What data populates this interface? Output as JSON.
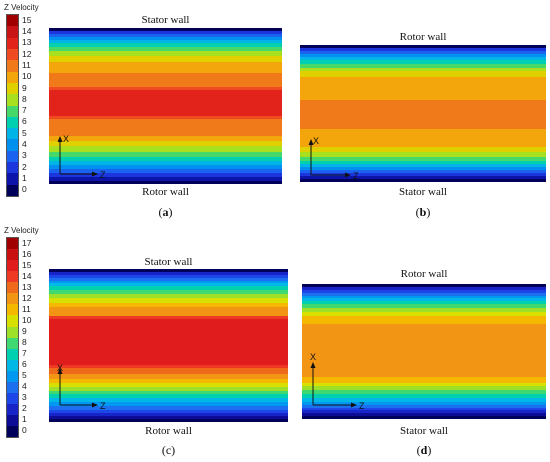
{
  "legends": [
    {
      "title": "Z Velocity",
      "ticks": [
        "15",
        "14",
        "13",
        "12",
        "11",
        "10",
        "9",
        "8",
        "7",
        "6",
        "5",
        "4",
        "3",
        "2",
        "1",
        "0"
      ]
    },
    {
      "title": "Z Velocity",
      "ticks": [
        "17",
        "16",
        "15",
        "14",
        "13",
        "12",
        "11",
        "10",
        "9",
        "8",
        "7",
        "6",
        "5",
        "4",
        "3",
        "2",
        "1",
        "0"
      ]
    }
  ],
  "panels": [
    {
      "id": "a",
      "top_wall": "Stator wall",
      "bottom_wall": "Rotor wall",
      "caption_open": "(",
      "caption_letter": "a",
      "caption_close": ")",
      "letter_bold": true,
      "axis_vertical": "X",
      "axis_horizontal": "Z"
    },
    {
      "id": "b",
      "top_wall": "Rotor wall",
      "bottom_wall": "Stator wall",
      "caption_open": "(",
      "caption_letter": "b",
      "caption_close": ")",
      "letter_bold": true,
      "axis_vertical": "X",
      "axis_horizontal": "Z"
    },
    {
      "id": "c",
      "top_wall": "Stator wall",
      "bottom_wall": "Rotor  wall",
      "caption_open": "(",
      "caption_letter": "c",
      "caption_close": ")",
      "letter_bold": false,
      "axis_vertical": "X",
      "axis_horizontal": "Z"
    },
    {
      "id": "d",
      "top_wall": "Rotor wall",
      "bottom_wall": "Stator wall",
      "caption_open": "(",
      "caption_letter": "d",
      "caption_close": ")",
      "letter_bold": true,
      "axis_vertical": "X",
      "axis_horizontal": "Z"
    }
  ],
  "colors": {
    "scale_17": [
      "#a00000",
      "#c81010",
      "#e01c1c",
      "#ee3a22",
      "#f06a1c",
      "#f29414",
      "#f5b800",
      "#d8e000",
      "#9ee028",
      "#40d870",
      "#00d0b0",
      "#00b8e8",
      "#0098f0",
      "#1c70f0",
      "#1c46e8",
      "#1624c8",
      "#0c0c96",
      "#00005a"
    ],
    "scale_15": [
      "#a00000",
      "#c81414",
      "#e2231c",
      "#ef4a22",
      "#f07a1a",
      "#f3a60c",
      "#e0d000",
      "#a8e020",
      "#46d868",
      "#00cfb0",
      "#00b4e8",
      "#0090f0",
      "#1a62f0",
      "#1a36dc",
      "#0c14aa",
      "#00005a"
    ]
  }
}
